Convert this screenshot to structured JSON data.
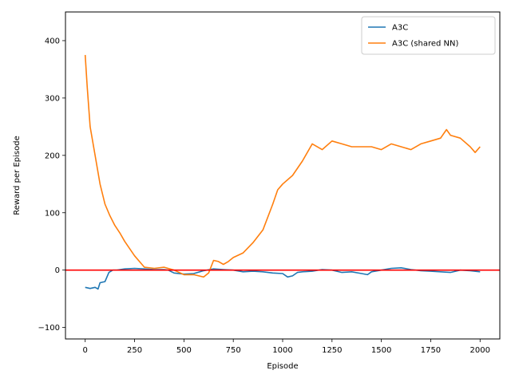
{
  "chart_data": {
    "type": "line",
    "xlabel": "Episode",
    "ylabel": "Reward per Episode",
    "xlim": [
      -100,
      2100
    ],
    "ylim": [
      -120,
      450
    ],
    "x_ticks": [
      0,
      250,
      500,
      750,
      1000,
      1250,
      1500,
      1750,
      2000
    ],
    "x_tick_labels": [
      "0",
      "250",
      "500",
      "750",
      "1000",
      "1250",
      "1500",
      "1750",
      "2000"
    ],
    "y_ticks": [
      -100,
      0,
      100,
      200,
      300,
      400
    ],
    "y_tick_labels": [
      "−100",
      "0",
      "100",
      "200",
      "300",
      "400"
    ],
    "grid": false,
    "legend_position": "top-right",
    "reference_line": {
      "y": 0,
      "color": "#ff0000"
    },
    "series": [
      {
        "name": "A3C",
        "color": "#1f77b4",
        "x": [
          0,
          25,
          50,
          65,
          75,
          100,
          120,
          140,
          160,
          200,
          250,
          300,
          350,
          400,
          420,
          450,
          500,
          550,
          600,
          650,
          700,
          750,
          800,
          850,
          900,
          950,
          1000,
          1025,
          1050,
          1075,
          1100,
          1150,
          1200,
          1250,
          1300,
          1350,
          1400,
          1430,
          1450,
          1500,
          1550,
          1600,
          1650,
          1700,
          1750,
          1800,
          1850,
          1900,
          1950,
          2000
        ],
        "y": [
          -30,
          -32,
          -30,
          -33,
          -22,
          -20,
          -4,
          0,
          0,
          2,
          3,
          2,
          1,
          1,
          0,
          -5,
          -7,
          -6,
          -1,
          2,
          1,
          0,
          -3,
          -2,
          -3,
          -5,
          -6,
          -12,
          -10,
          -4,
          -3,
          -2,
          1,
          0,
          -4,
          -3,
          -6,
          -8,
          -3,
          0,
          3,
          4,
          1,
          -1,
          -2,
          -3,
          -4,
          0,
          -1,
          -3
        ]
      },
      {
        "name": "A3C (shared NN)",
        "color": "#ff7f0e",
        "x": [
          0,
          10,
          25,
          50,
          75,
          100,
          125,
          150,
          175,
          200,
          250,
          300,
          350,
          400,
          450,
          500,
          550,
          600,
          625,
          650,
          675,
          700,
          725,
          750,
          800,
          850,
          900,
          950,
          975,
          1000,
          1050,
          1100,
          1150,
          1200,
          1250,
          1300,
          1350,
          1400,
          1450,
          1500,
          1550,
          1600,
          1650,
          1700,
          1750,
          1800,
          1830,
          1850,
          1900,
          1950,
          1975,
          2000
        ],
        "y": [
          375,
          320,
          250,
          200,
          150,
          115,
          95,
          78,
          65,
          50,
          25,
          5,
          3,
          5,
          0,
          -8,
          -8,
          -12,
          -5,
          17,
          15,
          10,
          15,
          22,
          30,
          48,
          70,
          115,
          140,
          150,
          165,
          190,
          220,
          210,
          225,
          220,
          215,
          215,
          215,
          210,
          220,
          215,
          210,
          220,
          225,
          230,
          245,
          235,
          230,
          215,
          205,
          215
        ]
      }
    ]
  }
}
